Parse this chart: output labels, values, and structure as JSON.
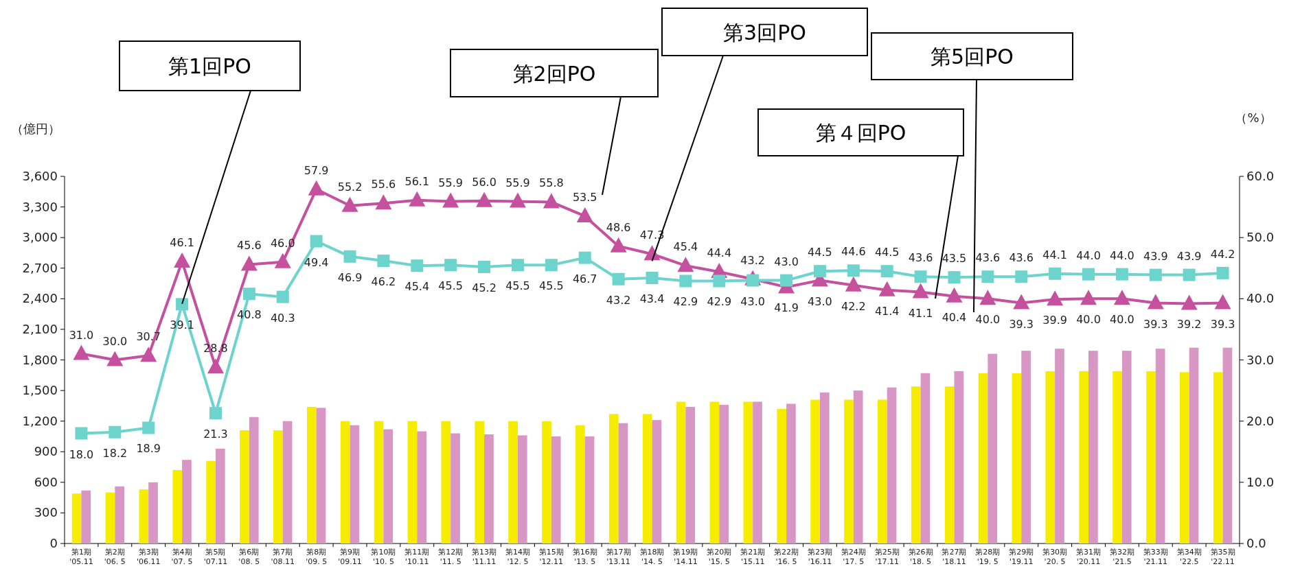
{
  "chart_data": {
    "type": "bar",
    "categories": [
      "第1期\n'05.11",
      "第2期\n'06. 5",
      "第3期\n'06.11",
      "第4期\n'07. 5",
      "第5期\n'07.11",
      "第6期\n'08. 5",
      "第7期\n'08.11",
      "第8期\n'09. 5",
      "第9期\n'09.11",
      "第10期\n'10. 5",
      "第11期\n'10.11",
      "第12期\n'11. 5",
      "第13期\n'11.11",
      "第14期\n'12. 5",
      "第15期\n'12.11",
      "第16期\n'13. 5",
      "第17期\n'13.11",
      "第18期\n'14. 5",
      "第19期\n'14.11",
      "第20期\n'15. 5",
      "第21期\n'15.11",
      "第22期\n'16. 5",
      "第23期\n'16.11",
      "第24期\n'17. 5",
      "第25期\n'17.11",
      "第26期\n'18. 5",
      "第27期\n'18.11",
      "第28期\n'19. 5",
      "第29期\n'19.11",
      "第30期\n'20. 5",
      "第31期\n'20.11",
      "第32期\n'21.5",
      "第33期\n'21.11",
      "第34期\n'22.5",
      "第35期\n'22.11"
    ],
    "ylabel": "（億円）",
    "y2label": "（%）",
    "ylim": [
      0,
      3600
    ],
    "yticks": [
      0,
      300,
      600,
      900,
      {
        "value": 1200,
        "label": "1,200"
      },
      {
        "value": 1500,
        "label": "1,500"
      },
      {
        "value": 1800,
        "label": "1,800"
      },
      {
        "value": 2100,
        "label": "2,100"
      },
      {
        "value": 2400,
        "label": "2,400"
      },
      {
        "value": 2700,
        "label": "2,700"
      },
      {
        "value": 3000,
        "label": "3,000"
      },
      {
        "value": 3300,
        "label": "3,300"
      },
      {
        "value": 3600,
        "label": "3,600"
      }
    ],
    "y2lim": [
      0,
      60
    ],
    "y2ticks": [
      {
        "value": 0,
        "label": "0.0"
      },
      {
        "value": 10,
        "label": "10.0"
      },
      {
        "value": 20,
        "label": "20.0"
      },
      {
        "value": 30,
        "label": "30.0"
      },
      {
        "value": 40,
        "label": "40.0"
      },
      {
        "value": 50,
        "label": "50.0"
      },
      {
        "value": 60,
        "label": "60.0"
      }
    ],
    "series": [
      {
        "type": "bar",
        "color": "#f5ec00",
        "values": [
          490,
          500,
          530,
          720,
          810,
          1110,
          1110,
          1340,
          1200,
          1200,
          1200,
          1200,
          1200,
          1200,
          1200,
          1160,
          1270,
          1270,
          1390,
          1390,
          1390,
          1320,
          1410,
          1410,
          1410,
          1540,
          1540,
          1670,
          1670,
          1690,
          1690,
          1690,
          1690,
          1680,
          1680
        ]
      },
      {
        "type": "bar",
        "color": "#d896c4",
        "values": [
          520,
          560,
          600,
          820,
          930,
          1240,
          1200,
          1330,
          1160,
          1120,
          1100,
          1080,
          1070,
          1060,
          1050,
          1050,
          1180,
          1210,
          1340,
          1360,
          1390,
          1370,
          1480,
          1500,
          1530,
          1670,
          1690,
          1860,
          1890,
          1910,
          1890,
          1890,
          1910,
          1920,
          1920
        ]
      },
      {
        "type": "line",
        "axis": "y2",
        "marker": "square",
        "color": "#6cd4cc",
        "values": [
          18.0,
          18.2,
          18.9,
          39.1,
          21.3,
          40.8,
          40.3,
          49.4,
          46.9,
          46.2,
          45.4,
          45.5,
          45.2,
          45.5,
          45.5,
          46.7,
          43.2,
          43.4,
          42.9,
          42.9,
          43.0,
          43.0,
          44.5,
          44.6,
          44.5,
          43.6,
          43.5,
          43.6,
          43.6,
          44.1,
          44.0,
          44.0,
          43.9,
          43.9,
          44.2
        ],
        "value_labels": [
          "18.0",
          "18.2",
          "18.9",
          "39.1",
          "21.3",
          "40.8",
          "40.3",
          "49.4",
          "46.9",
          "46.2",
          "45.4",
          "45.5",
          "45.2",
          "45.5",
          "45.5",
          "46.7",
          "43.2",
          "43.4",
          "42.9",
          "42.9",
          "43.0",
          "43.0",
          "44.5",
          "44.6",
          "44.5",
          "43.6",
          "43.5",
          "43.6",
          "43.6",
          "44.1",
          "44.0",
          "44.0",
          "43.9",
          "43.9",
          "44.2"
        ]
      },
      {
        "type": "line",
        "axis": "y2",
        "marker": "triangle",
        "color": "#c4509e",
        "values": [
          31.0,
          30.0,
          30.7,
          46.1,
          28.8,
          45.6,
          46.0,
          57.9,
          55.2,
          55.6,
          56.1,
          55.9,
          56.0,
          55.9,
          55.8,
          53.5,
          48.6,
          47.3,
          45.4,
          44.4,
          43.2,
          41.9,
          43.0,
          42.2,
          41.4,
          41.1,
          40.4,
          40.0,
          39.3,
          39.9,
          40.0,
          40.0,
          39.3,
          39.2,
          39.3
        ],
        "value_labels": [
          "31.0",
          "30.0",
          "30.7",
          "46.1",
          "28.8",
          "45.6",
          "46.0",
          "57.9",
          "55.2",
          "55.6",
          "56.1",
          "55.9",
          "56.0",
          "55.9",
          "55.8",
          "53.5",
          "48.6",
          "47.3",
          "45.4",
          "44.4",
          "43.2",
          "41.9",
          "43.0",
          "42.2",
          "41.4",
          "41.1",
          "40.4",
          "40.0",
          "39.3",
          "39.9",
          "40.0",
          "40.0",
          "39.3",
          "39.2",
          "39.3"
        ]
      }
    ],
    "annotations": [
      {
        "text": "第1回PO",
        "x": "第4期\n'07. 5",
        "y": 2350
      },
      "第2回PO",
      {
        "text": "第3回PO",
        "x": "第18期\n'14. 5",
        "y": 2770
      },
      "第４回PO",
      "第5回PO"
    ]
  }
}
